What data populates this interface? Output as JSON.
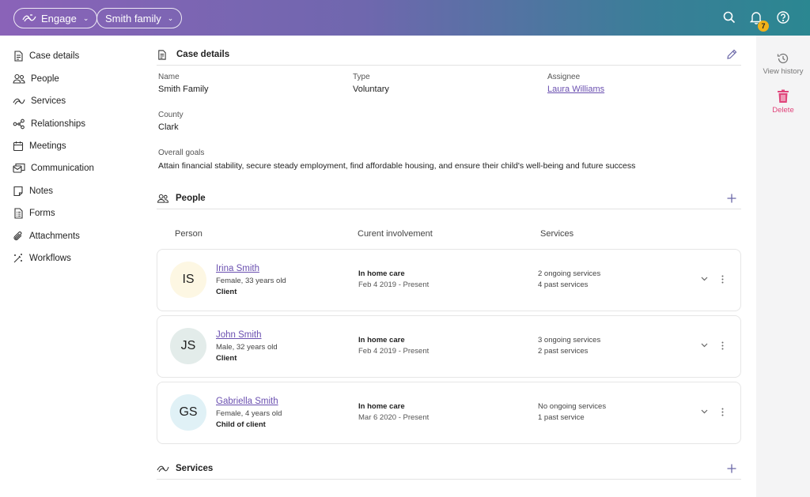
{
  "topbar": {
    "app_label": "Engage",
    "case_label": "Smith family",
    "notification_count": "7"
  },
  "sidebar": {
    "items": [
      {
        "label": "Case details",
        "icon": "document-icon"
      },
      {
        "label": "People",
        "icon": "people-icon"
      },
      {
        "label": "Services",
        "icon": "services-icon"
      },
      {
        "label": "Relationships",
        "icon": "relationships-icon"
      },
      {
        "label": "Meetings",
        "icon": "calendar-icon"
      },
      {
        "label": "Communication",
        "icon": "communication-icon"
      },
      {
        "label": "Notes",
        "icon": "note-icon"
      },
      {
        "label": "Forms",
        "icon": "form-icon"
      },
      {
        "label": "Attachments",
        "icon": "paperclip-icon"
      },
      {
        "label": "Workflows",
        "icon": "wand-icon"
      }
    ]
  },
  "case_details": {
    "title": "Case details",
    "name_label": "Name",
    "name_value": "Smith Family",
    "type_label": "Type",
    "type_value": "Voluntary",
    "assignee_label": "Assignee",
    "assignee_value": "Laura Williams",
    "county_label": "County",
    "county_value": "Clark",
    "goals_label": "Overall goals",
    "goals_value": "Attain financial stability, secure steady employment, find affordable housing, and ensure their child's well-being and future success"
  },
  "people": {
    "title": "People",
    "columns": [
      "Person",
      "Curent involvement",
      "Services"
    ],
    "rows": [
      {
        "initials": "IS",
        "avatar_color": "#fdf7e3",
        "name": "Irina Smith",
        "meta": "Female, 33 years old",
        "role": "Client",
        "involvement": "In home care",
        "dates": "Feb 4 2019 - Present",
        "svc_ongoing": "2 ongoing services",
        "svc_past": "4 past services"
      },
      {
        "initials": "JS",
        "avatar_color": "#e3ecea",
        "name": "John Smith",
        "meta": "Male, 32 years old",
        "role": "Client",
        "involvement": "In home care",
        "dates": "Feb 4 2019 - Present",
        "svc_ongoing": "3 ongoing services",
        "svc_past": "2 past services"
      },
      {
        "initials": "GS",
        "avatar_color": "#e0f1f6",
        "name": "Gabriella Smith",
        "meta": "Female, 4 years old",
        "role": "Child of client",
        "involvement": "In home care",
        "dates": "Mar 6 2020 - Present",
        "svc_ongoing": "No ongoing services",
        "svc_past": "1 past service"
      }
    ]
  },
  "services": {
    "title": "Services"
  },
  "rail": {
    "history_label": "View history",
    "delete_label": "Delete",
    "delete_color": "#e0457b"
  }
}
